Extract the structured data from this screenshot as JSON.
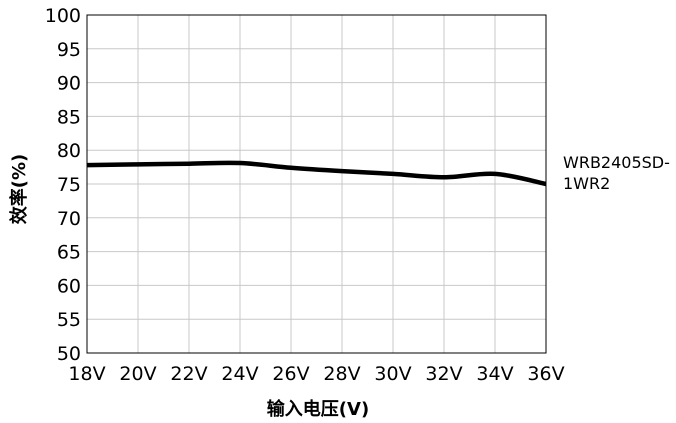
{
  "chart_data": {
    "type": "line",
    "title": "",
    "xlabel": "输入电压(V)",
    "ylabel": "效率(%)",
    "categories": [
      "18V",
      "20V",
      "22V",
      "24V",
      "26V",
      "28V",
      "30V",
      "32V",
      "34V",
      "36V"
    ],
    "x": [
      18,
      20,
      22,
      24,
      26,
      28,
      30,
      32,
      34,
      36
    ],
    "ylim": [
      50,
      100
    ],
    "yticks": [
      50,
      55,
      60,
      65,
      70,
      75,
      80,
      85,
      90,
      95,
      100
    ],
    "ytick_labels": [
      "50",
      "55",
      "60",
      "65",
      "70",
      "75",
      "80",
      "85",
      "90",
      "95",
      "100"
    ],
    "grid": true,
    "legend_position": "right",
    "series": [
      {
        "name": "WRB2405SD-\n1WR2",
        "name_lines": [
          "WRB2405SD-",
          "1WR2"
        ],
        "color": "#000000",
        "values": [
          77.8,
          77.9,
          78.0,
          78.1,
          77.4,
          76.9,
          76.5,
          76.0,
          76.5,
          75.0
        ]
      }
    ]
  }
}
